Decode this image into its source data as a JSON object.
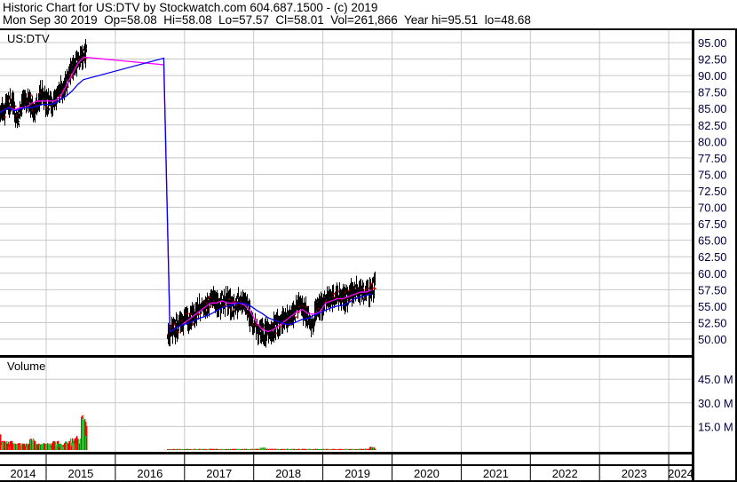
{
  "header": {
    "line1": "Historic Chart for US:DTV by Stockwatch.com 604.687.1500 - (c) 2019",
    "line2": "Mon Sep 30 2019  Op=58.08  Hi=58.08  Lo=57.57  Cl=58.01  Vol=261,866  Year hi=95.51  lo=48.68"
  },
  "chart_data": [
    {
      "type": "line",
      "panel": "price",
      "title": "US:DTV",
      "ylim": [
        47.5,
        97
      ],
      "y_ticks": [
        "95.00",
        "92.50",
        "90.00",
        "87.50",
        "85.00",
        "82.50",
        "80.00",
        "77.50",
        "75.00",
        "72.50",
        "70.00",
        "67.50",
        "65.00",
        "62.50",
        "60.00",
        "57.50",
        "55.00",
        "52.50",
        "50.00"
      ],
      "grid": true,
      "colors": {
        "bars": "#000000",
        "bar_tick": "#ff0000",
        "ma_short": "#ff00ff",
        "ma_long": "#0000ff"
      },
      "x": [
        "2014-04",
        "2014-05",
        "2014-06",
        "2014-07",
        "2014-08",
        "2014-09",
        "2014-10",
        "2014-11",
        "2014-12",
        "2015-01",
        "2015-02",
        "2015-03",
        "2015-04",
        "2015-05",
        "2015-06",
        "2015-07",
        "2016-10",
        "2016-11",
        "2016-12",
        "2017-01",
        "2017-02",
        "2017-03",
        "2017-04",
        "2017-05",
        "2017-06",
        "2017-07",
        "2017-08",
        "2017-09",
        "2017-10",
        "2017-11",
        "2017-12",
        "2018-01",
        "2018-02",
        "2018-03",
        "2018-04",
        "2018-05",
        "2018-06",
        "2018-07",
        "2018-08",
        "2018-09",
        "2018-10",
        "2018-11",
        "2018-12",
        "2019-01",
        "2019-02",
        "2019-03",
        "2019-04",
        "2019-05",
        "2019-06",
        "2019-07",
        "2019-08",
        "2019-09"
      ],
      "series": [
        {
          "values": [
            84,
            85,
            86,
            83,
            86,
            86,
            85,
            87,
            86,
            85,
            87,
            88,
            90,
            92,
            93,
            93,
            51,
            52,
            53,
            53,
            54,
            55,
            55,
            56,
            55,
            56,
            55,
            55,
            56,
            54,
            52,
            51,
            51,
            51,
            52,
            53,
            53,
            54,
            55,
            54,
            52,
            55,
            55,
            56,
            56,
            56,
            56,
            57,
            57,
            57,
            57,
            58
          ]
        }
      ]
    },
    {
      "type": "bar",
      "panel": "volume",
      "title": "Volume",
      "ylim": [
        0,
        57
      ],
      "y_ticks": [
        "45.0 M",
        "30.0 M",
        "15.0 M"
      ],
      "colors": {
        "up": "#33bb33",
        "down": "#ff0000"
      },
      "values_millions": [
        12,
        4,
        4,
        3,
        3,
        3,
        5,
        3,
        3,
        3,
        4,
        3,
        4,
        5,
        6,
        15,
        0.4,
        0.5,
        0.5,
        0.5,
        0.5,
        0.5,
        0.5,
        0.5,
        0.5,
        0.5,
        0.5,
        0.5,
        0.5,
        0.5,
        0.5,
        0.6,
        1.2,
        0.6,
        0.6,
        0.5,
        0.5,
        0.5,
        0.5,
        0.5,
        0.5,
        0.5,
        0.5,
        0.5,
        0.5,
        0.5,
        0.5,
        0.5,
        0.5,
        0.5,
        0.6,
        1.5
      ]
    }
  ],
  "x_axis": {
    "years": [
      "2014",
      "2015",
      "2016",
      "2017",
      "2018",
      "2019",
      "2020",
      "2021",
      "2022",
      "2023",
      "2024"
    ]
  }
}
